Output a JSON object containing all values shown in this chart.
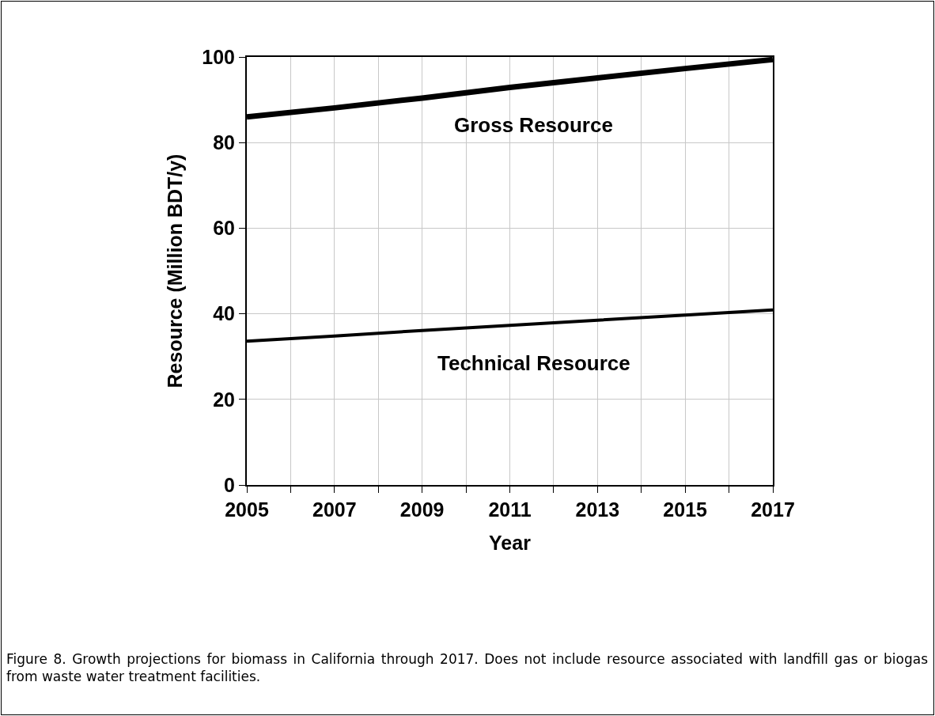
{
  "chart_data": {
    "type": "line",
    "xlabel": "Year",
    "ylabel": "Resource (Million BDT/y)",
    "x": [
      2005,
      2007,
      2009,
      2011,
      2013,
      2015,
      2017
    ],
    "series": [
      {
        "name": "Gross Resource",
        "color": "#000000",
        "values": [
          86,
          88.1,
          90.4,
          92.9,
          95.1,
          97.3,
          99.4
        ]
      },
      {
        "name": "Technical Resource",
        "color": "#000000",
        "values": [
          33.6,
          34.8,
          36.1,
          37.3,
          38.5,
          39.7,
          40.9
        ]
      }
    ],
    "xlim": [
      2005,
      2017
    ],
    "ylim": [
      0,
      100
    ],
    "xticks": [
      2005,
      {
        "value": 2006,
        "label": null
      },
      2007,
      {
        "value": 2008,
        "label": null
      },
      2009,
      {
        "value": 2010,
        "label": null
      },
      2011,
      {
        "value": 2012,
        "label": null
      },
      2013,
      {
        "value": 2014,
        "label": null
      },
      2015,
      {
        "value": 2016,
        "label": null
      },
      2017
    ],
    "yticks": [
      0,
      20,
      40,
      60,
      80,
      100
    ],
    "grid": true,
    "legend": false,
    "marker": "none",
    "line_style": "solid",
    "annotations": [
      "Figure 8.  Growth projections for biomass in California through 2017.  Does not include resource associated with landfill gas or biogas from waste water treatment facilities."
    ]
  }
}
